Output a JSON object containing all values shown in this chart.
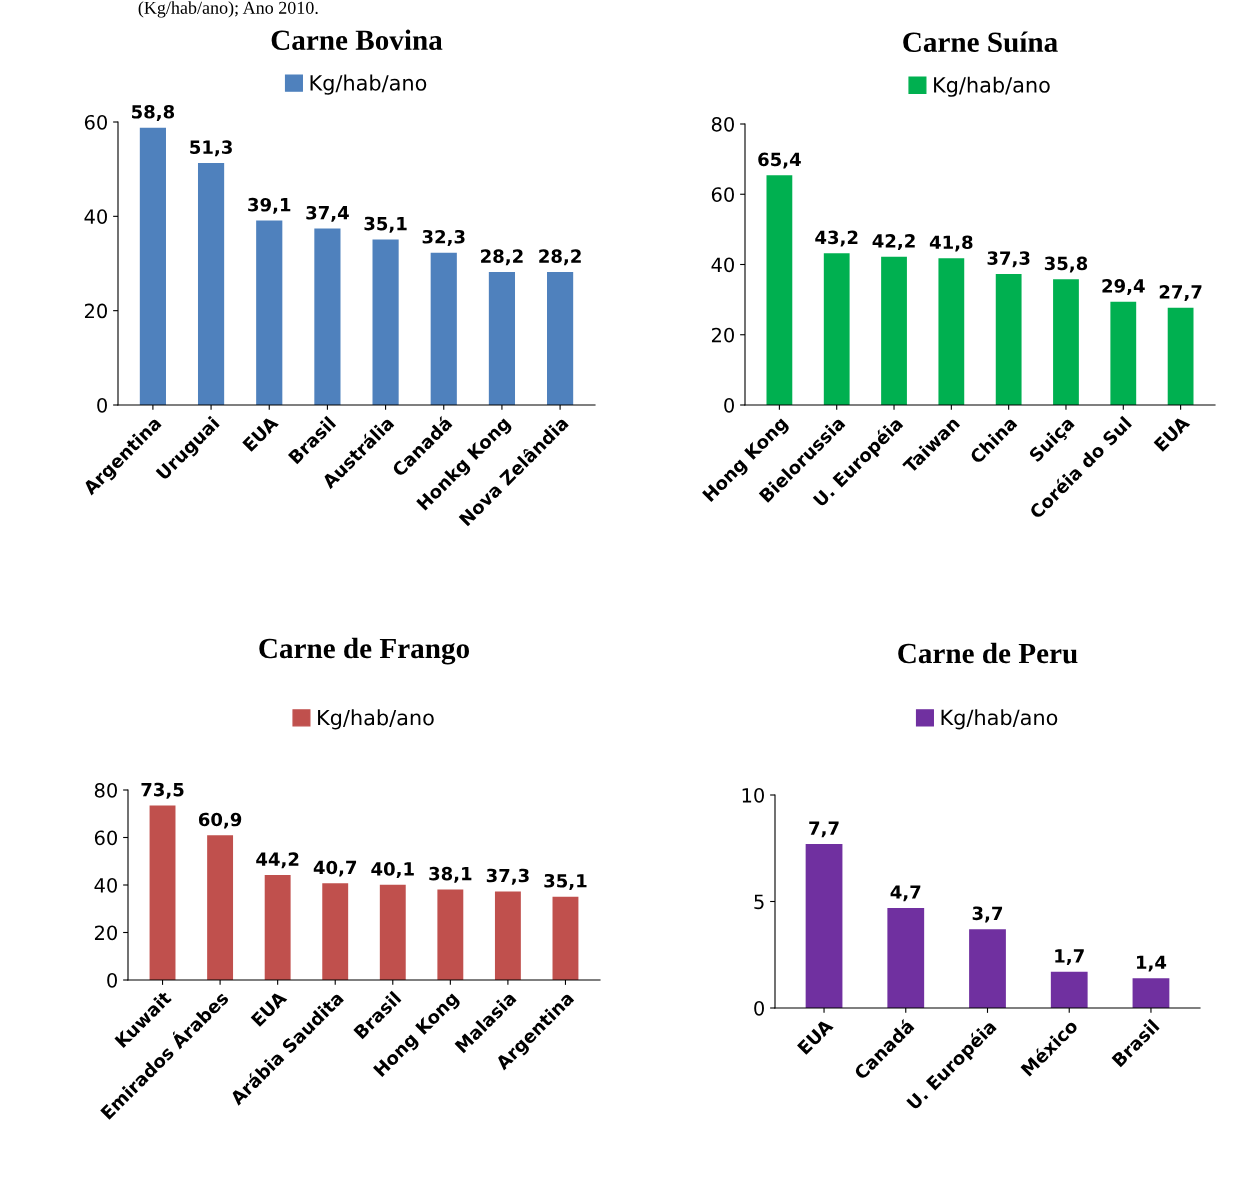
{
  "chart_data": [
    {
      "type": "bar",
      "title": "Carne Bovina",
      "annotations": [
        "(Kg/hab/ano); Ano 2010."
      ],
      "categories": [
        "Argentina",
        "Uruguai",
        "EUA",
        "Brasil",
        "Austrália",
        "Canadá",
        "Honkg Kong",
        "Nova Zelândia"
      ],
      "series": [
        {
          "name": "Kg/hab/ano",
          "color": "#4f81bd",
          "values": [
            58.8,
            51.3,
            39.1,
            37.4,
            35.1,
            32.3,
            28.2,
            28.2
          ]
        }
      ],
      "value_labels": [
        "58,8",
        "51,3",
        "39,1",
        "37,4",
        "35,1",
        "32,3",
        "28,2",
        "28,2"
      ],
      "ylim": [
        0,
        60
      ],
      "yticks": [
        0,
        20,
        40,
        60
      ],
      "legend": "top",
      "grid": false
    },
    {
      "type": "bar",
      "title": "Carne Suína",
      "categories": [
        "Hong Kong",
        "Bielorussia",
        "U. Européia",
        "Taiwan",
        "China",
        "Suiça",
        "Coréia do Sul",
        "EUA"
      ],
      "series": [
        {
          "name": "Kg/hab/ano",
          "color": "#00b050",
          "values": [
            65.4,
            43.2,
            42.2,
            41.8,
            37.3,
            35.8,
            29.4,
            27.7
          ]
        }
      ],
      "value_labels": [
        "65,4",
        "43,2",
        "42,2",
        "41,8",
        "37,3",
        "35,8",
        "29,4",
        "27,7"
      ],
      "ylim": [
        0,
        80
      ],
      "yticks": [
        0,
        20,
        40,
        60,
        80
      ],
      "legend": "top",
      "grid": false
    },
    {
      "type": "bar",
      "title": "Carne de Frango",
      "categories": [
        "Kuwait",
        "Emirados Árabes",
        "EUA",
        "Arábia Saudita",
        "Brasil",
        "Hong Kong",
        "Malasia",
        "Argentina"
      ],
      "series": [
        {
          "name": "Kg/hab/ano",
          "color": "#c0504d",
          "values": [
            73.5,
            60.9,
            44.2,
            40.7,
            40.1,
            38.1,
            37.3,
            35.1
          ]
        }
      ],
      "value_labels": [
        "73,5",
        "60,9",
        "44,2",
        "40,7",
        "40,1",
        "38,1",
        "37,3",
        "35,1"
      ],
      "ylim": [
        0,
        80
      ],
      "yticks": [
        0,
        20,
        40,
        60,
        80
      ],
      "legend": "top",
      "grid": false
    },
    {
      "type": "bar",
      "title": "Carne de Peru",
      "categories": [
        "EUA",
        "Canadá",
        "U. Européia",
        "México",
        "Brasil"
      ],
      "series": [
        {
          "name": "Kg/hab/ano",
          "color": "#7030a0",
          "values": [
            7.7,
            4.7,
            3.7,
            1.7,
            1.4
          ]
        }
      ],
      "value_labels": [
        "7,7",
        "4,7",
        "3,7",
        "1,7",
        "1,4"
      ],
      "ylim": [
        0,
        10
      ],
      "yticks": [
        0,
        5,
        10
      ],
      "legend": "top",
      "grid": false
    }
  ]
}
